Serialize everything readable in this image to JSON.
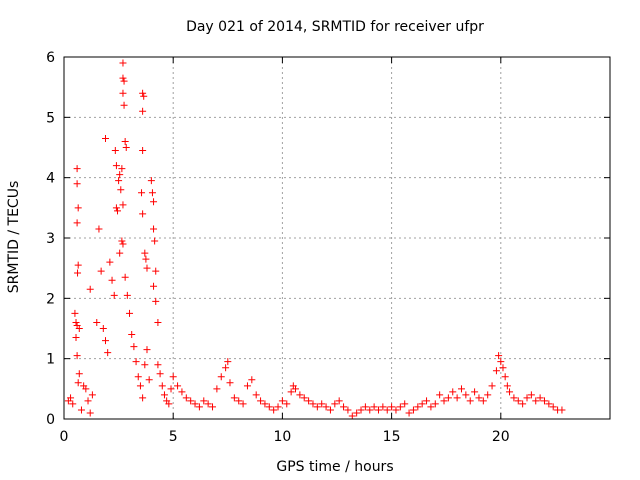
{
  "chart_data": {
    "type": "scatter",
    "title": "Day 021 of 2014, SRMTID for receiver ufpr",
    "xlabel": "GPS time / hours",
    "ylabel": "SRMTID / TECUs",
    "xlim": [
      0,
      25
    ],
    "ylim": [
      0,
      6
    ],
    "xticks": [
      0,
      5,
      10,
      15,
      20
    ],
    "yticks": [
      0,
      1,
      2,
      3,
      4,
      5,
      6
    ],
    "grid": true,
    "marker": "+",
    "color": "#ff0000",
    "series": [
      {
        "name": "SRMTID",
        "points": [
          [
            0.6,
            4.15
          ],
          [
            0.6,
            3.9
          ],
          [
            0.65,
            3.5
          ],
          [
            0.6,
            3.25
          ],
          [
            0.65,
            2.55
          ],
          [
            0.62,
            2.42
          ],
          [
            0.5,
            1.75
          ],
          [
            0.55,
            1.6
          ],
          [
            0.6,
            1.55
          ],
          [
            0.7,
            1.5
          ],
          [
            0.55,
            1.35
          ],
          [
            0.6,
            1.05
          ],
          [
            0.7,
            0.75
          ],
          [
            0.65,
            0.6
          ],
          [
            0.2,
            0.3
          ],
          [
            0.3,
            0.35
          ],
          [
            0.4,
            0.25
          ],
          [
            0.8,
            0.15
          ],
          [
            0.9,
            0.55
          ],
          [
            1.0,
            0.5
          ],
          [
            1.1,
            0.3
          ],
          [
            1.2,
            0.1
          ],
          [
            1.3,
            0.4
          ],
          [
            1.2,
            2.15
          ],
          [
            1.5,
            1.6
          ],
          [
            1.6,
            3.15
          ],
          [
            1.7,
            2.45
          ],
          [
            1.8,
            1.5
          ],
          [
            1.9,
            1.3
          ],
          [
            2.0,
            1.1
          ],
          [
            1.9,
            4.65
          ],
          [
            2.1,
            2.6
          ],
          [
            2.2,
            2.3
          ],
          [
            2.3,
            2.05
          ],
          [
            2.35,
            4.45
          ],
          [
            2.4,
            4.2
          ],
          [
            2.4,
            3.5
          ],
          [
            2.45,
            3.45
          ],
          [
            2.5,
            3.95
          ],
          [
            2.55,
            2.75
          ],
          [
            2.55,
            4.05
          ],
          [
            2.6,
            3.8
          ],
          [
            2.65,
            4.15
          ],
          [
            2.7,
            3.55
          ],
          [
            2.65,
            2.95
          ],
          [
            2.7,
            2.9
          ],
          [
            2.8,
            2.35
          ],
          [
            2.9,
            2.05
          ],
          [
            3.0,
            1.75
          ],
          [
            2.7,
            5.9
          ],
          [
            2.7,
            5.65
          ],
          [
            2.75,
            5.6
          ],
          [
            2.7,
            5.4
          ],
          [
            2.75,
            5.2
          ],
          [
            2.8,
            4.6
          ],
          [
            2.85,
            4.5
          ],
          [
            3.6,
            5.4
          ],
          [
            3.65,
            5.35
          ],
          [
            3.6,
            5.1
          ],
          [
            3.6,
            4.45
          ],
          [
            3.55,
            3.75
          ],
          [
            3.6,
            3.4
          ],
          [
            3.7,
            2.75
          ],
          [
            3.75,
            2.65
          ],
          [
            3.8,
            2.5
          ],
          [
            4.0,
            3.95
          ],
          [
            4.05,
            3.75
          ],
          [
            4.1,
            3.6
          ],
          [
            4.1,
            3.15
          ],
          [
            4.15,
            2.95
          ],
          [
            4.2,
            2.45
          ],
          [
            4.1,
            2.2
          ],
          [
            4.2,
            1.95
          ],
          [
            4.3,
            1.6
          ],
          [
            3.1,
            1.4
          ],
          [
            3.2,
            1.2
          ],
          [
            3.3,
            0.95
          ],
          [
            3.4,
            0.7
          ],
          [
            3.5,
            0.55
          ],
          [
            3.6,
            0.35
          ],
          [
            3.7,
            0.9
          ],
          [
            3.8,
            1.15
          ],
          [
            3.9,
            0.65
          ],
          [
            4.3,
            0.9
          ],
          [
            4.4,
            0.75
          ],
          [
            4.5,
            0.55
          ],
          [
            4.6,
            0.4
          ],
          [
            4.7,
            0.3
          ],
          [
            4.8,
            0.25
          ],
          [
            4.9,
            0.5
          ],
          [
            5.0,
            0.7
          ],
          [
            5.2,
            0.55
          ],
          [
            5.4,
            0.45
          ],
          [
            5.6,
            0.35
          ],
          [
            5.8,
            0.3
          ],
          [
            6.0,
            0.25
          ],
          [
            6.2,
            0.2
          ],
          [
            6.4,
            0.3
          ],
          [
            6.6,
            0.25
          ],
          [
            6.8,
            0.2
          ],
          [
            7.0,
            0.5
          ],
          [
            7.2,
            0.7
          ],
          [
            7.4,
            0.85
          ],
          [
            7.5,
            0.95
          ],
          [
            7.6,
            0.6
          ],
          [
            7.8,
            0.35
          ],
          [
            8.0,
            0.3
          ],
          [
            8.2,
            0.25
          ],
          [
            8.4,
            0.55
          ],
          [
            8.6,
            0.65
          ],
          [
            8.8,
            0.4
          ],
          [
            9.0,
            0.3
          ],
          [
            9.2,
            0.25
          ],
          [
            9.4,
            0.2
          ],
          [
            9.6,
            0.15
          ],
          [
            9.8,
            0.2
          ],
          [
            10.0,
            0.3
          ],
          [
            10.2,
            0.25
          ],
          [
            10.4,
            0.45
          ],
          [
            10.5,
            0.55
          ],
          [
            10.6,
            0.5
          ],
          [
            10.8,
            0.4
          ],
          [
            11.0,
            0.35
          ],
          [
            11.2,
            0.3
          ],
          [
            11.4,
            0.25
          ],
          [
            11.6,
            0.2
          ],
          [
            11.8,
            0.25
          ],
          [
            12.0,
            0.2
          ],
          [
            12.2,
            0.15
          ],
          [
            12.4,
            0.25
          ],
          [
            12.6,
            0.3
          ],
          [
            12.8,
            0.2
          ],
          [
            13.0,
            0.15
          ],
          [
            13.2,
            0.05
          ],
          [
            13.4,
            0.1
          ],
          [
            13.6,
            0.15
          ],
          [
            13.8,
            0.2
          ],
          [
            14.0,
            0.15
          ],
          [
            14.2,
            0.2
          ],
          [
            14.4,
            0.15
          ],
          [
            14.6,
            0.2
          ],
          [
            14.8,
            0.15
          ],
          [
            15.0,
            0.2
          ],
          [
            15.2,
            0.15
          ],
          [
            15.4,
            0.2
          ],
          [
            15.6,
            0.25
          ],
          [
            15.8,
            0.1
          ],
          [
            16.0,
            0.15
          ],
          [
            16.2,
            0.2
          ],
          [
            16.4,
            0.25
          ],
          [
            16.6,
            0.3
          ],
          [
            16.8,
            0.2
          ],
          [
            17.0,
            0.25
          ],
          [
            17.2,
            0.4
          ],
          [
            17.4,
            0.3
          ],
          [
            17.6,
            0.35
          ],
          [
            17.8,
            0.45
          ],
          [
            18.0,
            0.35
          ],
          [
            18.2,
            0.5
          ],
          [
            18.4,
            0.4
          ],
          [
            18.6,
            0.3
          ],
          [
            18.8,
            0.45
          ],
          [
            19.0,
            0.35
          ],
          [
            19.2,
            0.3
          ],
          [
            19.4,
            0.4
          ],
          [
            19.6,
            0.55
          ],
          [
            19.8,
            0.8
          ],
          [
            19.9,
            1.05
          ],
          [
            20.0,
            0.95
          ],
          [
            20.1,
            0.85
          ],
          [
            20.2,
            0.7
          ],
          [
            20.3,
            0.55
          ],
          [
            20.4,
            0.45
          ],
          [
            20.6,
            0.35
          ],
          [
            20.8,
            0.3
          ],
          [
            21.0,
            0.25
          ],
          [
            21.2,
            0.35
          ],
          [
            21.4,
            0.4
          ],
          [
            21.6,
            0.3
          ],
          [
            21.8,
            0.35
          ],
          [
            22.0,
            0.3
          ],
          [
            22.2,
            0.25
          ],
          [
            22.4,
            0.2
          ],
          [
            22.6,
            0.15
          ],
          [
            22.8,
            0.15
          ]
        ]
      }
    ]
  }
}
